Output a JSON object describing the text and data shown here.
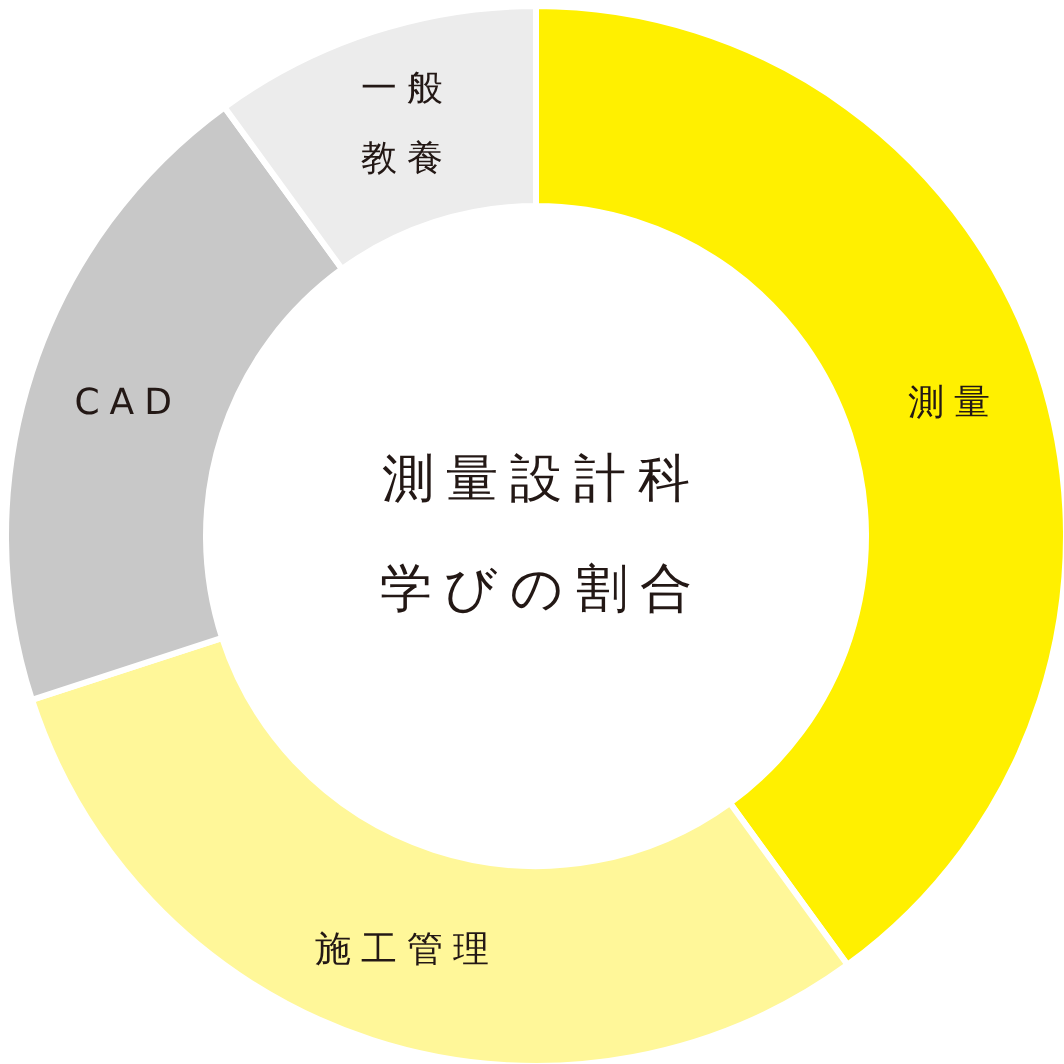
{
  "chart_data": {
    "type": "donut",
    "title": "測量設計科学びの割合",
    "categories": [
      "測量",
      "施工管理",
      "CAD",
      "一般教養"
    ],
    "values": [
      40,
      30,
      20,
      10
    ],
    "colors": [
      "#fff000",
      "#fff799",
      "#c8c8c8",
      "#ececec"
    ]
  }
}
